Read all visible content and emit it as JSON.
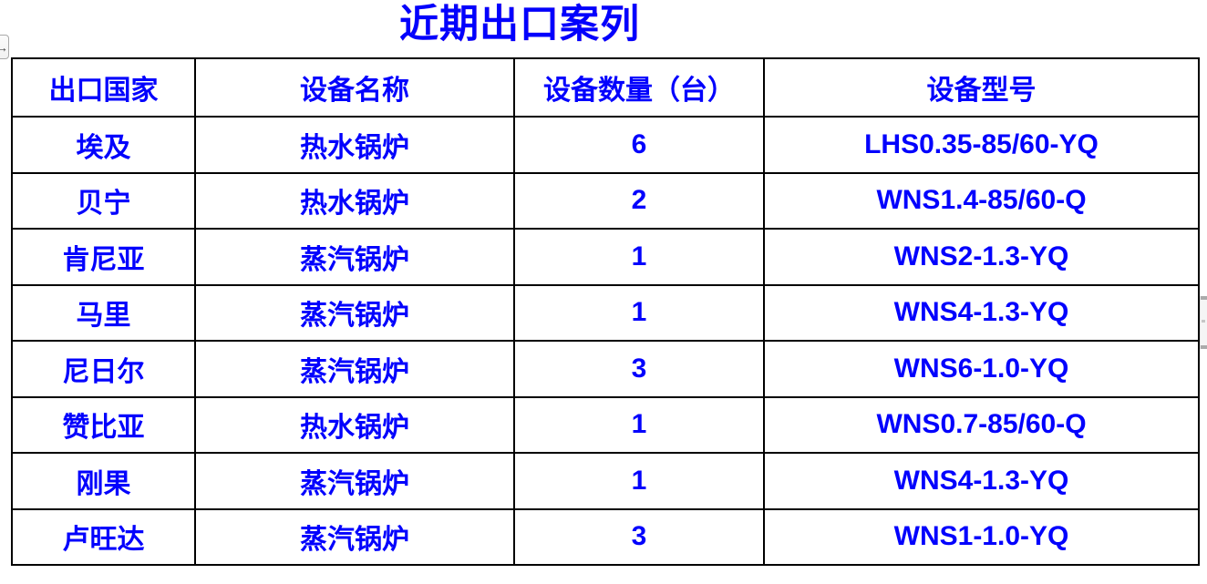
{
  "theme": {
    "accent": "#0201fd",
    "border": "#000000",
    "background": "#ffffff"
  },
  "page": {
    "title": "近期出口案列"
  },
  "controls": {
    "scroll_right_button": {
      "icon": "arrow-right-icon",
      "glyph": "→"
    }
  },
  "table": {
    "columns": [
      "出口国家",
      "设备名称",
      "设备数量（台）",
      "设备型号"
    ],
    "rows": [
      {
        "country": "埃及",
        "equipment": "热水锅炉",
        "quantity": "6",
        "model": "LHS0.35-85/60-YQ"
      },
      {
        "country": "贝宁",
        "equipment": "热水锅炉",
        "quantity": "2",
        "model": "WNS1.4-85/60-Q"
      },
      {
        "country": "肯尼亚",
        "equipment": "蒸汽锅炉",
        "quantity": "1",
        "model": "WNS2-1.3-YQ"
      },
      {
        "country": "马里",
        "equipment": "蒸汽锅炉",
        "quantity": "1",
        "model": "WNS4-1.3-YQ"
      },
      {
        "country": "尼日尔",
        "equipment": "蒸汽锅炉",
        "quantity": "3",
        "model": "WNS6-1.0-YQ"
      },
      {
        "country": "赞比亚",
        "equipment": "热水锅炉",
        "quantity": "1",
        "model": "WNS0.7-85/60-Q"
      },
      {
        "country": "刚果",
        "equipment": "蒸汽锅炉",
        "quantity": "1",
        "model": "WNS4-1.3-YQ"
      },
      {
        "country": "卢旺达",
        "equipment": "蒸汽锅炉",
        "quantity": "3",
        "model": "WNS1-1.0-YQ"
      }
    ]
  }
}
